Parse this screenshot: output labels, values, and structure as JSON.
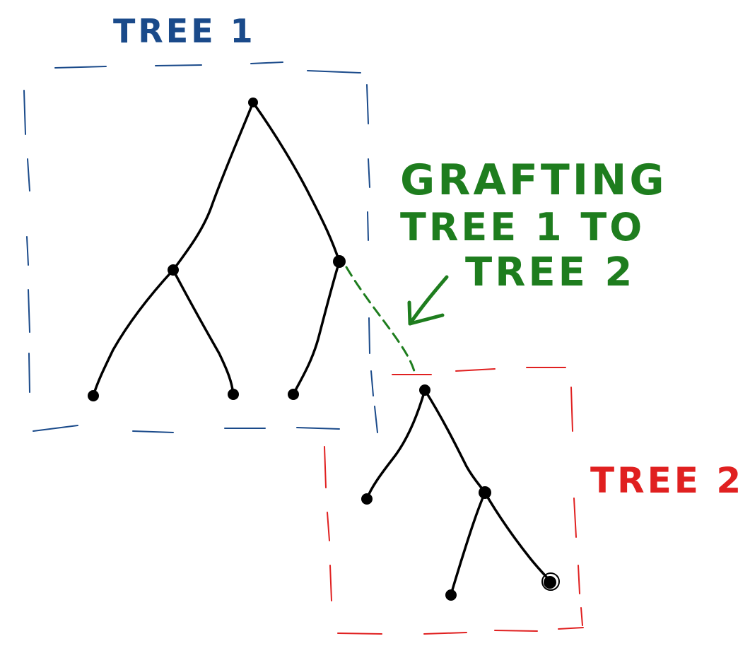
{
  "labels": {
    "tree1": "TREE 1",
    "tree2": "TREE 2",
    "grafting_line1": "GRAFTING",
    "grafting_line2": "TREE 1 TO",
    "grafting_line3": "TREE 2"
  },
  "colors": {
    "tree1_box": "#1a4a8a",
    "tree2_box": "#e02020",
    "graft": "#1e7d1e",
    "tree": "#000000"
  },
  "icons": {
    "graft_pointer": "arrow-down-left-icon",
    "node": "filled-dot-icon"
  }
}
